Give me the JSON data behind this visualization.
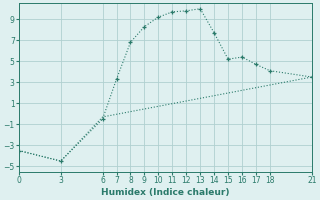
{
  "xlabel": "Humidex (Indice chaleur)",
  "bg_color": "#dff0f0",
  "grid_color": "#b0d0d0",
  "line_color": "#2a7a6a",
  "spine_color": "#2a7a6a",
  "xlim": [
    0,
    21
  ],
  "ylim": [
    -5.5,
    10.5
  ],
  "yticks": [
    -5,
    -3,
    -1,
    1,
    3,
    5,
    7,
    9
  ],
  "xticks": [
    0,
    3,
    6,
    7,
    8,
    9,
    10,
    11,
    12,
    13,
    14,
    15,
    16,
    17,
    18,
    21
  ],
  "line1_x": [
    0,
    3,
    6,
    7,
    8,
    9,
    10,
    11,
    12,
    13,
    14,
    15,
    16,
    17,
    18,
    21
  ],
  "line1_y": [
    -3.5,
    -4.5,
    -0.5,
    3.3,
    6.8,
    8.3,
    9.2,
    9.7,
    9.8,
    10.0,
    7.7,
    5.2,
    5.4,
    4.7,
    4.1,
    3.5
  ],
  "line2_x": [
    0,
    3,
    6,
    21
  ],
  "line2_y": [
    -3.5,
    -4.5,
    -0.3,
    3.5
  ],
  "tick_fontsize": 5.5,
  "xlabel_fontsize": 6.5
}
